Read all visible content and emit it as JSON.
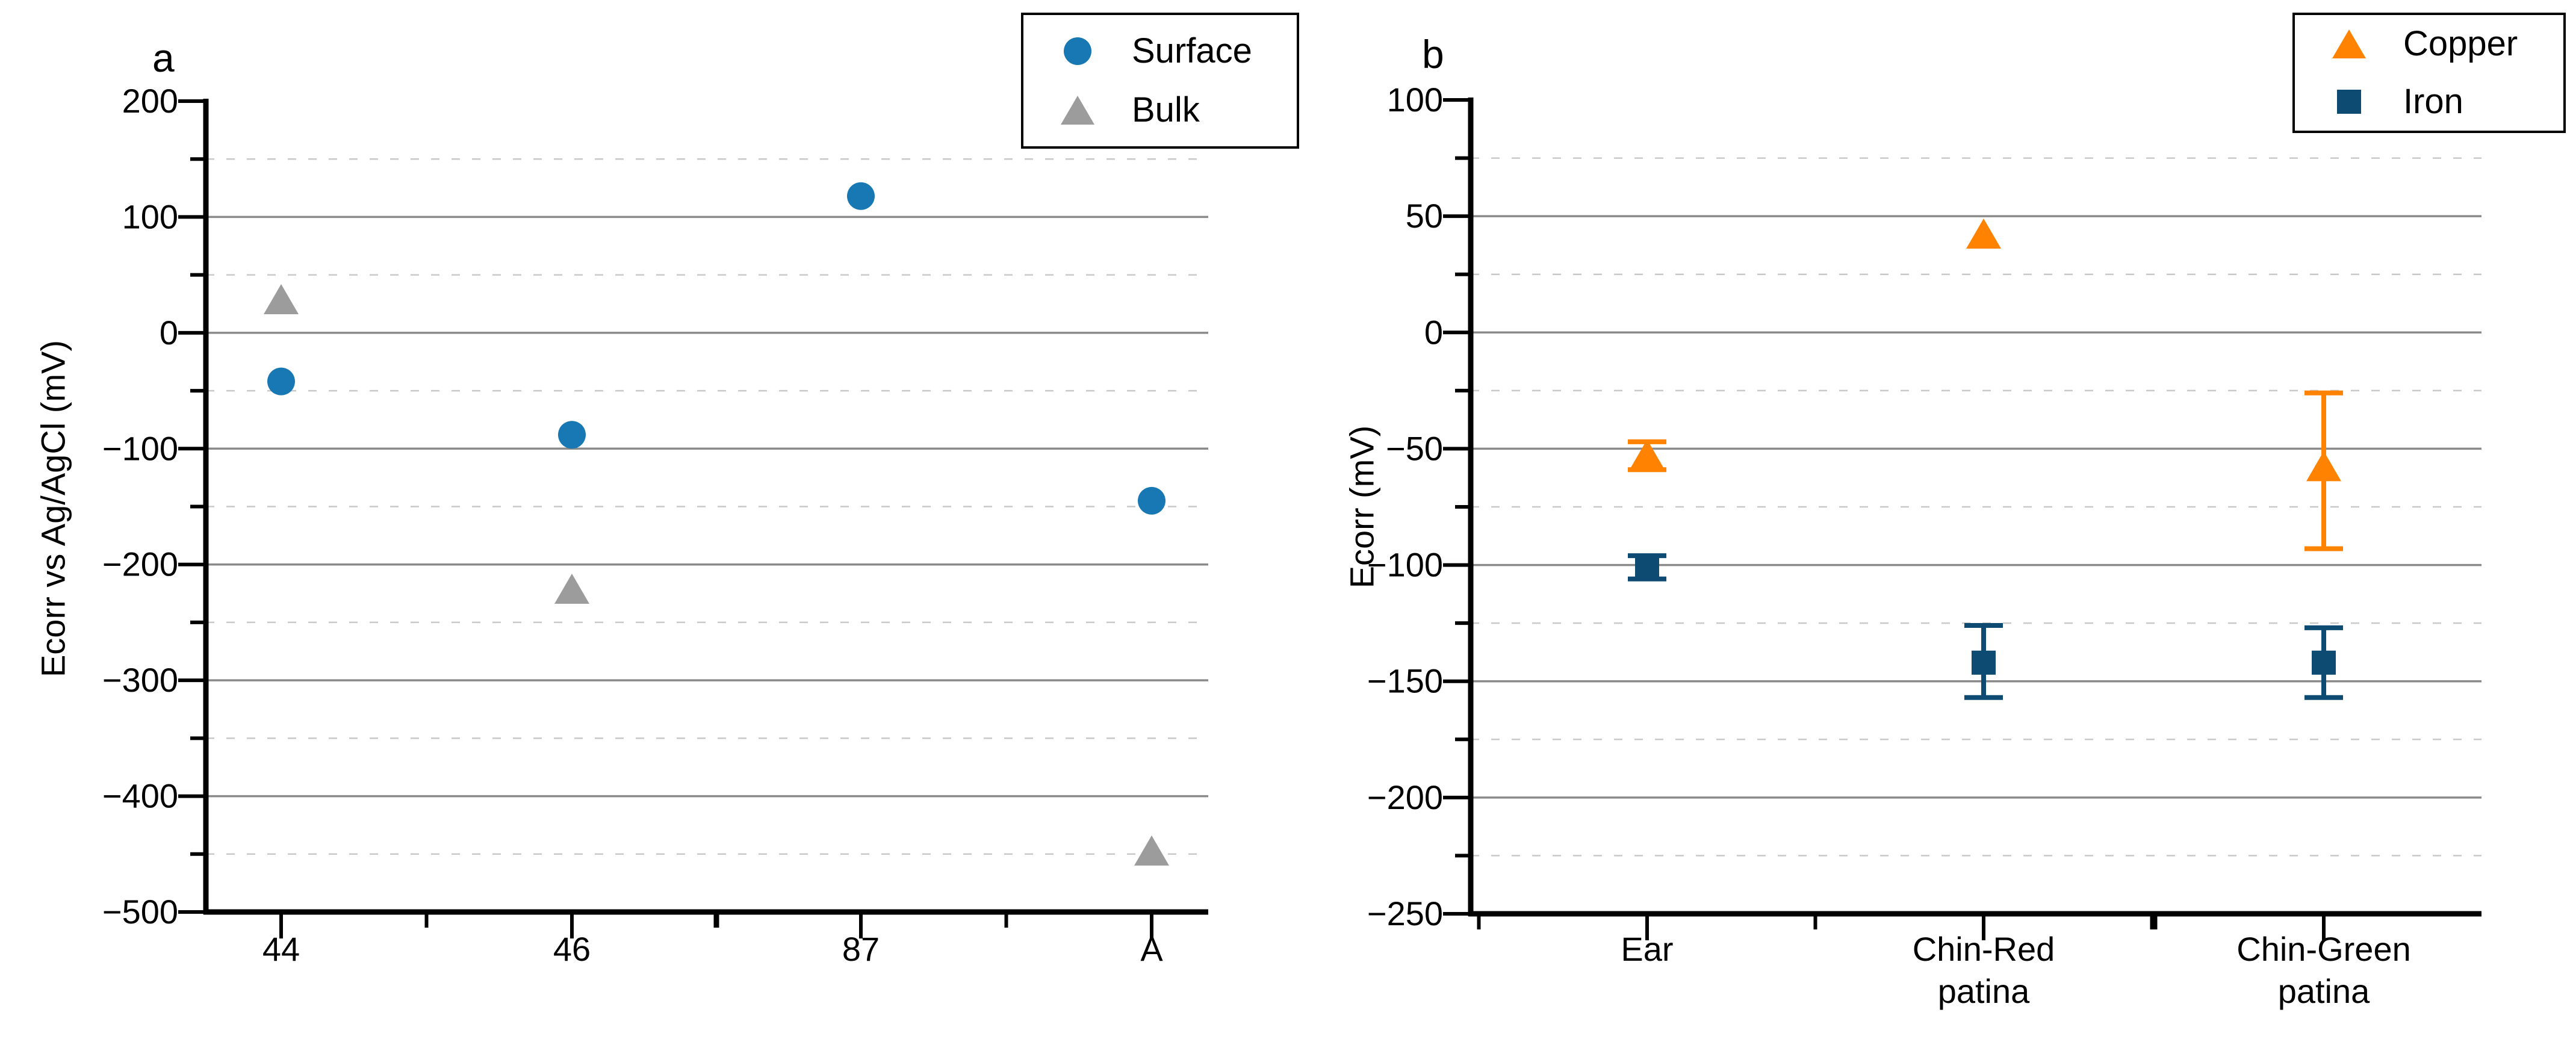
{
  "figure": {
    "panel_a_letter": "a",
    "panel_b_letter": "b"
  },
  "chart_data": [
    {
      "type": "scatter",
      "panel_label": "a",
      "ylabel": "Ecorr vs Ag/AgCl (mV)",
      "categories": [
        "44",
        "46",
        "87",
        "A"
      ],
      "ylim": [
        -500,
        200
      ],
      "ytick_step": 100,
      "yminor_step": 50,
      "ytick_labels": [
        "200",
        "100",
        "0",
        "−100",
        "−200",
        "−300",
        "−400",
        "−500"
      ],
      "grid": "major-solid-minor-dashed",
      "legend_position": "top-right",
      "legend_entries": [
        {
          "label": "Surface",
          "marker": "circle",
          "color": "#1878b4"
        },
        {
          "label": "Bulk",
          "marker": "triangle",
          "color": "#9c9c9c"
        }
      ],
      "series": [
        {
          "name": "Surface",
          "marker": "circle",
          "color": "#1878b4",
          "values": [
            -42,
            -88,
            118,
            -145
          ]
        },
        {
          "name": "Bulk",
          "marker": "triangle",
          "color": "#9c9c9c",
          "values": [
            28,
            -222,
            null,
            -448
          ]
        }
      ]
    },
    {
      "type": "scatter",
      "panel_label": "b",
      "ylabel": "Ecorr (mV)",
      "categories": [
        "Ear",
        "Chin-Red\npatina",
        "Chin-Green\npatina"
      ],
      "ylim": [
        -250,
        100
      ],
      "ytick_step": 50,
      "yminor_step": 25,
      "ytick_labels": [
        "100",
        "50",
        "0",
        "−50",
        "−100",
        "−150",
        "−200",
        "−250"
      ],
      "grid": "major-solid-minor-dashed",
      "legend_position": "top-right",
      "legend_entries": [
        {
          "label": "Copper",
          "marker": "triangle",
          "color": "#ff8200"
        },
        {
          "label": "Iron",
          "marker": "square",
          "color": "#0e4b73"
        }
      ],
      "series": [
        {
          "name": "Copper",
          "marker": "triangle",
          "color": "#ff8200",
          "values": [
            -53,
            42,
            -58
          ],
          "err_plus": [
            6,
            0,
            32
          ],
          "err_minus": [
            6,
            0,
            35
          ]
        },
        {
          "name": "Iron",
          "marker": "square",
          "color": "#0e4b73",
          "values": [
            -101,
            -142,
            -142
          ],
          "err_plus": [
            5,
            16,
            15
          ],
          "err_minus": [
            5,
            15,
            15
          ]
        }
      ]
    }
  ]
}
